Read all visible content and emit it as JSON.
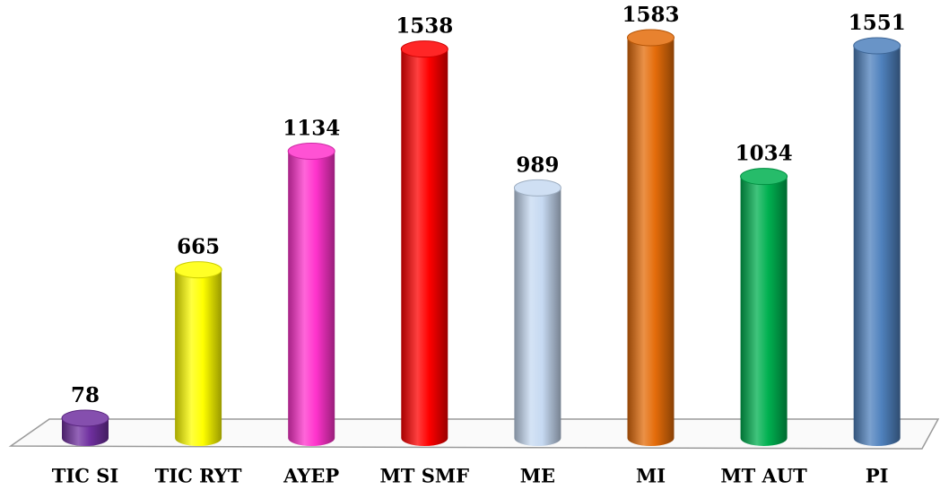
{
  "chart_data": {
    "type": "bar",
    "categories": [
      "TIC SI",
      "TIC RYT",
      "AYEP",
      "MT SMF",
      "ME",
      "MI",
      "MT AUT",
      "PI"
    ],
    "values": [
      78,
      665,
      1134,
      1538,
      989,
      1583,
      1034,
      1551
    ],
    "colors": [
      "#7030a0",
      "#ffff00",
      "#ff33cc",
      "#ff0000",
      "#c6d9f1",
      "#e46c0a",
      "#00b050",
      "#4f81bd"
    ]
  }
}
